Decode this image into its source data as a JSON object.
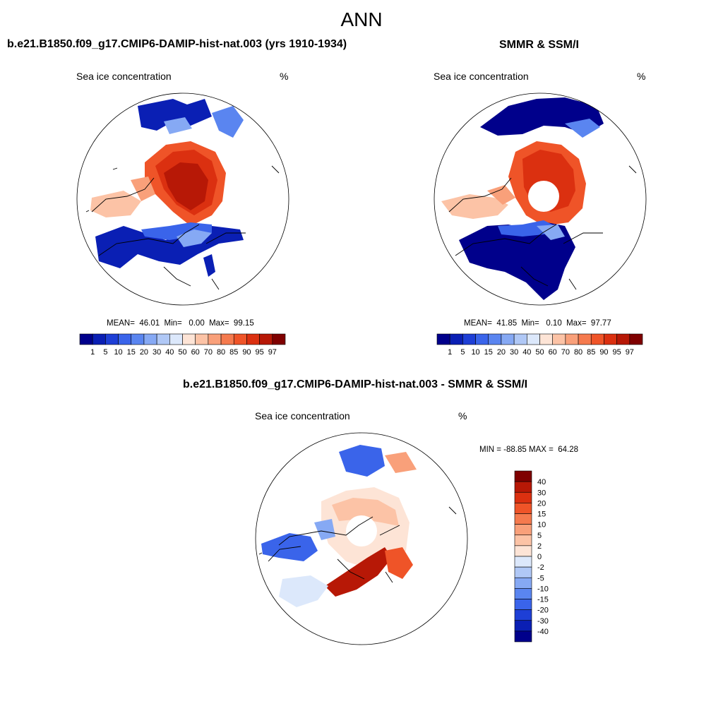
{
  "main_title": "ANN",
  "panel_left": {
    "title": "b.e21.B1850.f09_g17.CMIP6-DAMIP-hist-nat.003 (yrs 1910-1934)",
    "variable": "Sea ice concentration",
    "units": "%",
    "stats": "MEAN=  46.01  Min=   0.00  Max=  99.15"
  },
  "panel_right": {
    "title": "SMMR & SSM/I",
    "variable": "Sea ice concentration",
    "units": "%",
    "stats": "MEAN=  41.85  Min=   0.10  Max=  97.77"
  },
  "panel_diff": {
    "title": "b.e21.B1850.f09_g17.CMIP6-DAMIP-hist-nat.003 - SMMR & SSM/I",
    "variable": "Sea ice concentration",
    "units": "%",
    "stats": "MIN = -88.85 MAX =  64.28"
  },
  "colorbar_abs": {
    "labels": [
      "1",
      "5",
      "10",
      "15",
      "20",
      "30",
      "40",
      "50",
      "60",
      "70",
      "80",
      "85",
      "90",
      "95",
      "97"
    ],
    "colors": [
      "#00008b",
      "#0a1fb4",
      "#1e3fd6",
      "#3a64ea",
      "#5a85f0",
      "#86a9f4",
      "#b0c8f6",
      "#dce8fb",
      "#fde4d6",
      "#fcc3a6",
      "#f9a07a",
      "#f57a4e",
      "#ef5428",
      "#db3010",
      "#b71806",
      "#7f0000"
    ]
  },
  "colorbar_diff": {
    "labels": [
      "40",
      "30",
      "20",
      "15",
      "10",
      "5",
      "2",
      "0",
      "-2",
      "-5",
      "-10",
      "-15",
      "-20",
      "-30",
      "-40"
    ],
    "colors": [
      "#7f0000",
      "#b71806",
      "#db3010",
      "#ef5428",
      "#f57a4e",
      "#f9a07a",
      "#fcc3a6",
      "#fde4d6",
      "#dce8fb",
      "#b0c8f6",
      "#86a9f4",
      "#5a85f0",
      "#3a64ea",
      "#1e3fd6",
      "#0a1fb4",
      "#00008b"
    ]
  }
}
